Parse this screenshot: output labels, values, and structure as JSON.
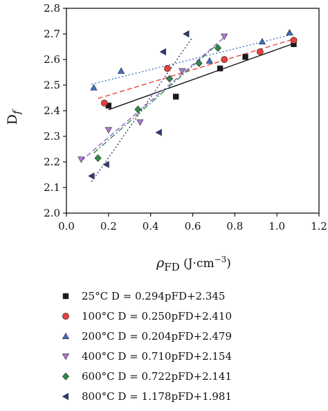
{
  "chart_data": {
    "type": "scatter",
    "xlabel": "ρFD (J·cm⁻³)",
    "xlabel_parts": {
      "symbol": "ρ",
      "sub": "FD",
      "unit": " (J·cm",
      "sup": "−3",
      "close": ")"
    },
    "ylabel": "Df",
    "ylabel_parts": {
      "symbol": "D",
      "sub": "f"
    },
    "xlim": [
      0.0,
      1.2
    ],
    "ylim": [
      2.0,
      2.8
    ],
    "xticks": [
      "0.0",
      "0.2",
      "0.4",
      "0.6",
      "0.8",
      "1.0",
      "1.2"
    ],
    "yticks": [
      "2.0",
      "2.1",
      "2.2",
      "2.3",
      "2.4",
      "2.5",
      "2.6",
      "2.7",
      "2.8"
    ],
    "grid": false,
    "legend_position": "below",
    "series": [
      {
        "name": "25°C",
        "equation": "D = 0.294pFD+2.345",
        "marker": "square",
        "color": "#1a1a1a",
        "line_color": "#111111",
        "line_style": "solid",
        "slope": 0.294,
        "intercept": 2.345,
        "fit_x": [
          0.2,
          1.08
        ],
        "x": [
          0.2,
          0.52,
          0.73,
          0.85,
          1.08
        ],
        "y": [
          2.42,
          2.455,
          2.565,
          2.61,
          2.66
        ]
      },
      {
        "name": "100°C",
        "equation": "D = 0.250pFD+2.410",
        "marker": "circle",
        "color": "#e8413b",
        "line_color": "#e8413b",
        "line_style": "dashed",
        "slope": 0.25,
        "intercept": 2.41,
        "fit_x": [
          0.15,
          1.08
        ],
        "x": [
          0.18,
          0.48,
          0.75,
          0.92,
          1.08
        ],
        "y": [
          2.43,
          2.565,
          2.6,
          2.63,
          2.675
        ]
      },
      {
        "name": "200°C",
        "equation": "D = 0.204pFD+2.479",
        "marker": "triangle-up",
        "color": "#3d6fc2",
        "line_color": "#3d6fc2",
        "line_style": "dotted",
        "slope": 0.204,
        "intercept": 2.479,
        "fit_x": [
          0.12,
          1.08
        ],
        "x": [
          0.13,
          0.26,
          0.68,
          0.93,
          1.06
        ],
        "y": [
          2.49,
          2.555,
          2.595,
          2.67,
          2.705
        ]
      },
      {
        "name": "400°C",
        "equation": "D = 0.710pFD+2.154",
        "marker": "triangle-down",
        "color": "#b07ad8",
        "line_color": "#9b59c9",
        "line_style": "dashed",
        "slope": 0.71,
        "intercept": 2.154,
        "fit_x": [
          0.07,
          0.75
        ],
        "x": [
          0.07,
          0.2,
          0.35,
          0.55,
          0.75
        ],
        "y": [
          2.21,
          2.325,
          2.355,
          2.555,
          2.69
        ]
      },
      {
        "name": "600°C",
        "equation": "D = 0.722pFD+2.141",
        "marker": "diamond",
        "color": "#2e8b4b",
        "line_color": "#2e8b4b",
        "line_style": "dashdot",
        "slope": 0.722,
        "intercept": 2.141,
        "fit_x": [
          0.13,
          0.72
        ],
        "x": [
          0.15,
          0.34,
          0.49,
          0.63,
          0.72
        ],
        "y": [
          2.215,
          2.405,
          2.525,
          2.585,
          2.645
        ]
      },
      {
        "name": "800°C",
        "equation": "D = 1.178pFD+1.981",
        "marker": "triangle-left",
        "color": "#303a78",
        "line_color": "#303a78",
        "line_style": "dotted",
        "slope": 1.178,
        "intercept": 1.981,
        "fit_x": [
          0.12,
          0.6
        ],
        "x": [
          0.12,
          0.19,
          0.44,
          0.46,
          0.57
        ],
        "y": [
          2.145,
          2.19,
          2.315,
          2.63,
          2.7
        ]
      }
    ]
  }
}
